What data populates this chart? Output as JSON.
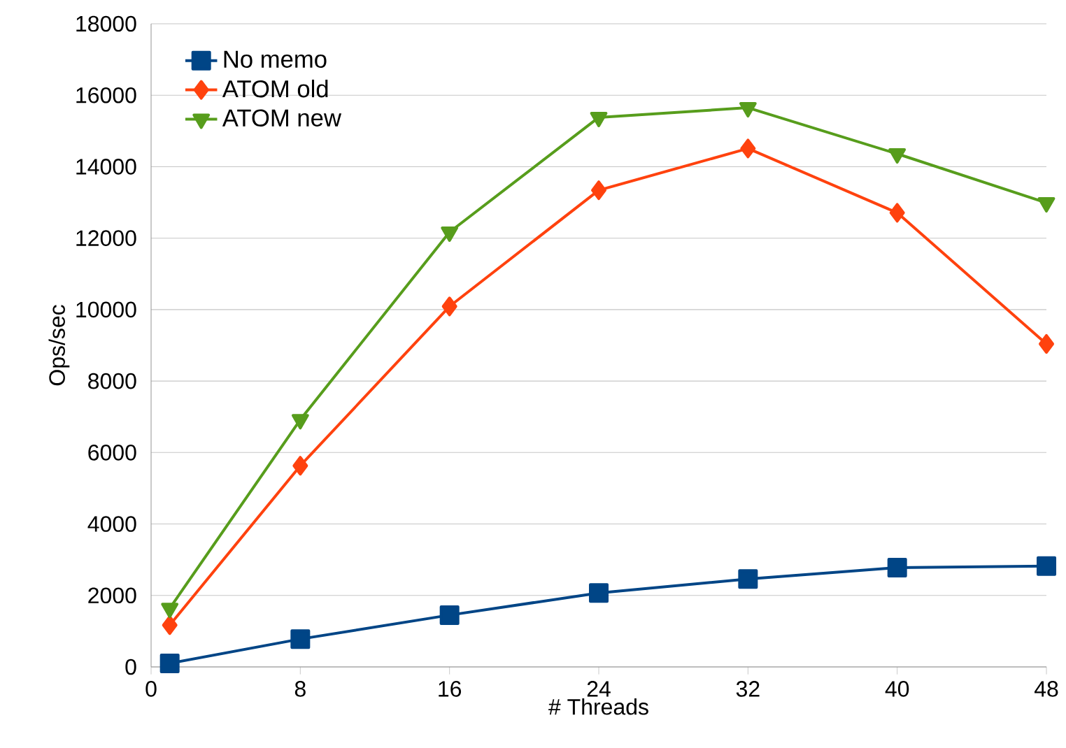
{
  "chart_data": {
    "type": "line",
    "xlabel": "# Threads",
    "ylabel": "Ops/sec",
    "x": [
      1,
      8,
      16,
      24,
      32,
      40,
      48
    ],
    "series": [
      {
        "name": "No memo",
        "color": "#004586",
        "marker": "square",
        "values": [
          100,
          780,
          1450,
          2070,
          2460,
          2780,
          2820
        ]
      },
      {
        "name": "ATOM old",
        "color": "#ff420e",
        "marker": "diamond",
        "values": [
          1170,
          5630,
          10090,
          13340,
          14510,
          12710,
          9040
        ]
      },
      {
        "name": "ATOM new",
        "color": "#579d1c",
        "marker": "triangle",
        "values": [
          1640,
          6920,
          12170,
          15380,
          15650,
          14360,
          12990
        ]
      }
    ],
    "xlim": [
      0,
      48
    ],
    "xticks": [
      0,
      8,
      16,
      24,
      32,
      40,
      48
    ],
    "ylim": [
      0,
      18000
    ],
    "yticks": [
      0,
      2000,
      4000,
      6000,
      8000,
      10000,
      12000,
      14000,
      16000,
      18000
    ],
    "grid": "y",
    "legend": "top left",
    "line_style": "solid"
  }
}
